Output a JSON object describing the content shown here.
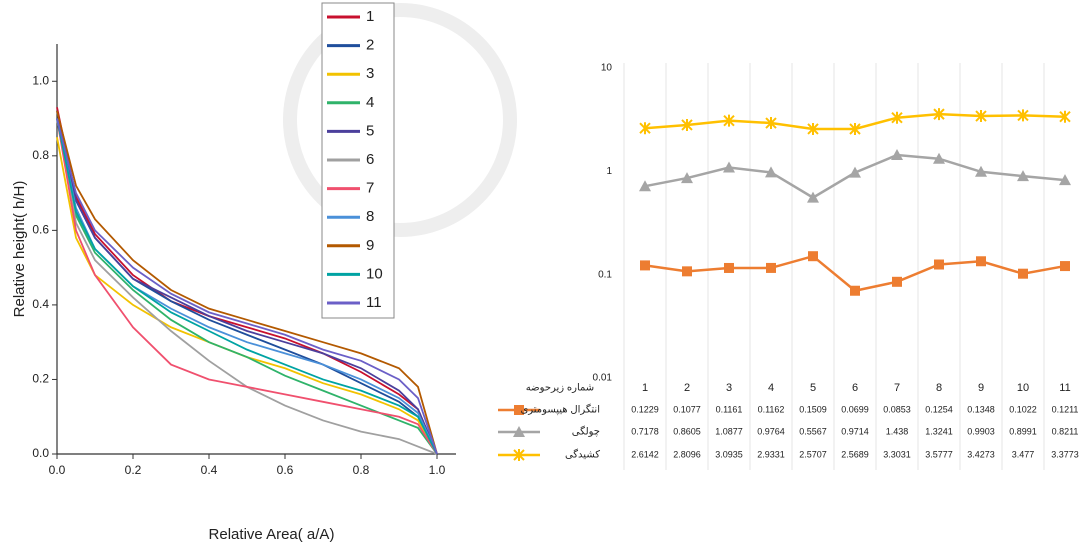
{
  "chart_data": [
    {
      "type": "line",
      "x_label": "Relative Area( a/A)",
      "y_label": "Relative height( h/H)",
      "x": [
        0,
        0.05,
        0.1,
        0.2,
        0.3,
        0.4,
        0.5,
        0.6,
        0.7,
        0.8,
        0.9,
        0.95,
        1
      ],
      "xlim": [
        0,
        1.05
      ],
      "ylim": [
        0,
        1.1
      ],
      "xticks": [
        {
          "value": 0,
          "label": "0.0"
        },
        0.2,
        0.4,
        0.6,
        0.8,
        {
          "value": 1,
          "label": "1.0"
        }
      ],
      "yticks": [
        {
          "value": 0,
          "label": "0.0"
        },
        0.2,
        0.4,
        0.6,
        0.8,
        {
          "value": 1,
          "label": "1.0"
        }
      ],
      "legend": true,
      "series": [
        {
          "name": "1",
          "color": "#c8102e",
          "values": [
            0.93,
            0.69,
            0.59,
            0.48,
            0.41,
            0.37,
            0.34,
            0.31,
            0.27,
            0.22,
            0.16,
            0.12,
            0
          ]
        },
        {
          "name": "2",
          "color": "#1f4e9c",
          "values": [
            0.92,
            0.68,
            0.58,
            0.47,
            0.41,
            0.36,
            0.32,
            0.28,
            0.24,
            0.19,
            0.14,
            0.1,
            0
          ]
        },
        {
          "name": "3",
          "color": "#f2c200",
          "values": [
            0.85,
            0.58,
            0.48,
            0.4,
            0.34,
            0.3,
            0.26,
            0.23,
            0.19,
            0.16,
            0.12,
            0.09,
            0
          ]
        },
        {
          "name": "4",
          "color": "#2fb36a",
          "values": [
            0.9,
            0.64,
            0.54,
            0.44,
            0.36,
            0.3,
            0.26,
            0.21,
            0.17,
            0.13,
            0.09,
            0.07,
            0
          ]
        },
        {
          "name": "5",
          "color": "#4b3f9c",
          "values": [
            0.9,
            0.68,
            0.58,
            0.47,
            0.42,
            0.37,
            0.33,
            0.3,
            0.27,
            0.23,
            0.17,
            0.12,
            0
          ]
        },
        {
          "name": "6",
          "color": "#a0a0a0",
          "values": [
            0.9,
            0.62,
            0.52,
            0.42,
            0.33,
            0.25,
            0.18,
            0.13,
            0.09,
            0.06,
            0.04,
            0.02,
            0
          ]
        },
        {
          "name": "7",
          "color": "#f0506e",
          "values": [
            0.9,
            0.6,
            0.48,
            0.34,
            0.24,
            0.2,
            0.18,
            0.16,
            0.14,
            0.12,
            0.1,
            0.08,
            0
          ]
        },
        {
          "name": "8",
          "color": "#4a90d9",
          "values": [
            0.9,
            0.66,
            0.55,
            0.45,
            0.39,
            0.34,
            0.3,
            0.27,
            0.24,
            0.2,
            0.15,
            0.11,
            0
          ]
        },
        {
          "name": "9",
          "color": "#b35900",
          "values": [
            0.92,
            0.72,
            0.63,
            0.52,
            0.44,
            0.39,
            0.36,
            0.33,
            0.3,
            0.27,
            0.23,
            0.18,
            0
          ]
        },
        {
          "name": "10",
          "color": "#00a3a3",
          "values": [
            0.9,
            0.65,
            0.55,
            0.45,
            0.38,
            0.33,
            0.28,
            0.24,
            0.2,
            0.17,
            0.13,
            0.1,
            0
          ]
        },
        {
          "name": "11",
          "color": "#6b5fc7",
          "values": [
            0.9,
            0.7,
            0.6,
            0.5,
            0.43,
            0.38,
            0.35,
            0.32,
            0.28,
            0.25,
            0.2,
            0.15,
            0
          ]
        }
      ]
    },
    {
      "type": "line",
      "log_scale": true,
      "table": true,
      "categories_title": "شماره زیرحوضه",
      "categories": [
        "1",
        "2",
        "3",
        "4",
        "5",
        "6",
        "7",
        "8",
        "9",
        "10",
        "11"
      ],
      "ylim": [
        0.01,
        10
      ],
      "yticks": [
        0.01,
        0.1,
        1,
        10
      ],
      "series": [
        {
          "name": "انتگرال هیپسومتری",
          "color": "#ed7d31",
          "marker": "square",
          "values": [
            0.1229,
            0.1077,
            0.1161,
            0.1162,
            0.1509,
            0.0699,
            0.0853,
            0.1254,
            0.1348,
            0.1022,
            0.1211
          ]
        },
        {
          "name": "چولگی",
          "color": "#a5a5a5",
          "marker": "triangle",
          "values": [
            0.7178,
            0.8605,
            1.0877,
            0.9764,
            0.5567,
            0.9714,
            1.438,
            1.3241,
            0.9903,
            0.8991,
            0.8211
          ]
        },
        {
          "name": "کشیدگی",
          "color": "#ffc000",
          "marker": "x",
          "values": [
            2.6142,
            2.8096,
            3.0935,
            2.9331,
            2.5707,
            2.5689,
            3.3031,
            3.5777,
            3.4273,
            3.477,
            3.3773
          ]
        }
      ]
    }
  ]
}
